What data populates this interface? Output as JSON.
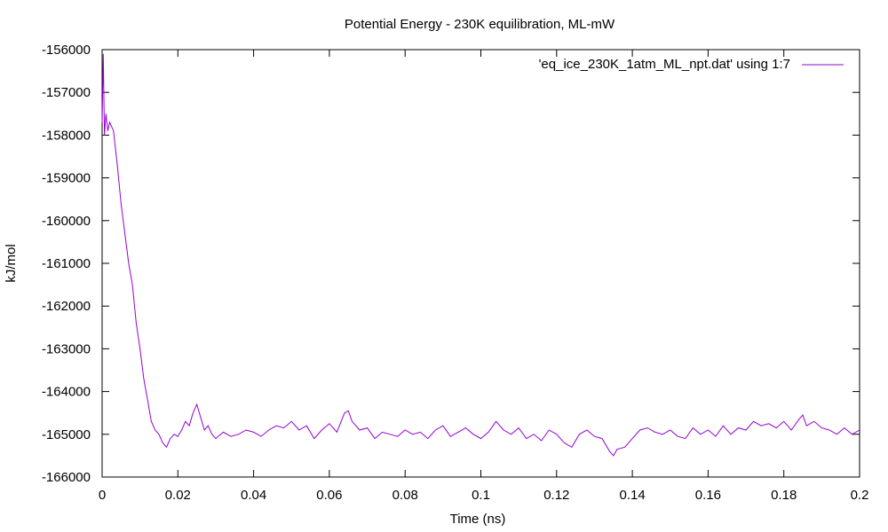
{
  "chart_data": {
    "type": "line",
    "title": "Potential Energy - 230K equilibration, ML-mW",
    "xlabel": "Time (ns)",
    "ylabel": "kJ/mol",
    "xlim": [
      0,
      0.2
    ],
    "ylim": [
      -166000,
      -156000
    ],
    "x_ticks": [
      0,
      0.02,
      0.04,
      0.06,
      0.08,
      0.1,
      0.12,
      0.14,
      0.16,
      0.18,
      0.2
    ],
    "x_tick_labels": [
      "0",
      "0.02",
      "0.04",
      "0.06",
      "0.08",
      "0.1",
      "0.12",
      "0.14",
      "0.16",
      "0.18",
      "0.2"
    ],
    "y_ticks": [
      -166000,
      -165000,
      -164000,
      -163000,
      -162000,
      -161000,
      -160000,
      -159000,
      -158000,
      -157000,
      -156000
    ],
    "y_tick_labels": [
      "-166000",
      "-165000",
      "-164000",
      "-163000",
      "-162000",
      "-161000",
      "-160000",
      "-159000",
      "-158000",
      "-157000",
      "-156000"
    ],
    "grid": false,
    "legend_position": "top-right",
    "series": [
      {
        "name": "'eq_ice_230K_1atm_ML_npt.dat' using 1:7",
        "color": "#9400d3",
        "x": [
          0,
          0.0003,
          0.0006,
          0.001,
          0.0015,
          0.002,
          0.003,
          0.004,
          0.005,
          0.006,
          0.007,
          0.008,
          0.009,
          0.01,
          0.011,
          0.012,
          0.013,
          0.014,
          0.015,
          0.016,
          0.017,
          0.018,
          0.019,
          0.02,
          0.021,
          0.022,
          0.023,
          0.024,
          0.025,
          0.026,
          0.027,
          0.028,
          0.029,
          0.03,
          0.032,
          0.034,
          0.036,
          0.038,
          0.04,
          0.042,
          0.044,
          0.046,
          0.048,
          0.05,
          0.052,
          0.054,
          0.056,
          0.058,
          0.06,
          0.062,
          0.064,
          0.065,
          0.066,
          0.068,
          0.07,
          0.072,
          0.074,
          0.076,
          0.078,
          0.08,
          0.082,
          0.084,
          0.086,
          0.088,
          0.09,
          0.092,
          0.094,
          0.096,
          0.098,
          0.1,
          0.102,
          0.104,
          0.106,
          0.108,
          0.11,
          0.112,
          0.114,
          0.116,
          0.118,
          0.12,
          0.122,
          0.124,
          0.126,
          0.128,
          0.13,
          0.132,
          0.134,
          0.135,
          0.136,
          0.138,
          0.14,
          0.142,
          0.144,
          0.146,
          0.148,
          0.15,
          0.152,
          0.154,
          0.156,
          0.158,
          0.16,
          0.162,
          0.164,
          0.166,
          0.168,
          0.17,
          0.172,
          0.174,
          0.176,
          0.178,
          0.18,
          0.182,
          0.184,
          0.185,
          0.186,
          0.188,
          0.19,
          0.192,
          0.194,
          0.196,
          0.198,
          0.2
        ],
        "values": [
          -157700,
          -156100,
          -158000,
          -157500,
          -157900,
          -157700,
          -157900,
          -158700,
          -159600,
          -160300,
          -161000,
          -161500,
          -162400,
          -163000,
          -163700,
          -164200,
          -164700,
          -164900,
          -165000,
          -165200,
          -165300,
          -165100,
          -165000,
          -165050,
          -164900,
          -164700,
          -164800,
          -164500,
          -164300,
          -164600,
          -164900,
          -164800,
          -165000,
          -165100,
          -164950,
          -165050,
          -165000,
          -164900,
          -164950,
          -165050,
          -164900,
          -164800,
          -164850,
          -164700,
          -164900,
          -164800,
          -165100,
          -164900,
          -164750,
          -164950,
          -164500,
          -164450,
          -164700,
          -164900,
          -164850,
          -165100,
          -164950,
          -165000,
          -165050,
          -164900,
          -165000,
          -164950,
          -165100,
          -164900,
          -164800,
          -165050,
          -164950,
          -164850,
          -165000,
          -165100,
          -164950,
          -164700,
          -164900,
          -165000,
          -164850,
          -165100,
          -165000,
          -165150,
          -164900,
          -165000,
          -165200,
          -165300,
          -165000,
          -164900,
          -165050,
          -165100,
          -165400,
          -165500,
          -165350,
          -165300,
          -165100,
          -164900,
          -164850,
          -164950,
          -165000,
          -164900,
          -165050,
          -165100,
          -164850,
          -165000,
          -164900,
          -165050,
          -164800,
          -165000,
          -164850,
          -164900,
          -164700,
          -164800,
          -164750,
          -164850,
          -164700,
          -164900,
          -164650,
          -164550,
          -164800,
          -164700,
          -164850,
          -164900,
          -165000,
          -164850,
          -165000,
          -164900
        ]
      }
    ]
  }
}
